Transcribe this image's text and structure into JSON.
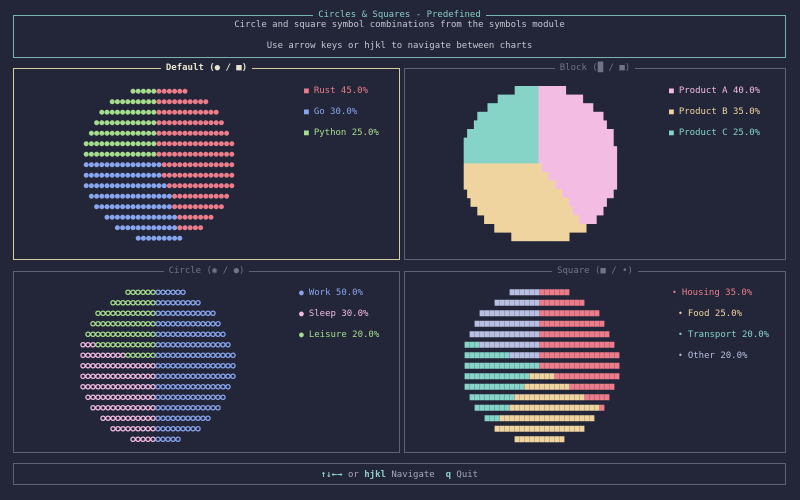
{
  "header": {
    "title": "Circles & Squares - Predefined",
    "subtitle": "Circle and square symbol combinations from the symbols module",
    "instructions": "Use arrow keys or hjkl to navigate between charts"
  },
  "footer": {
    "arrows": "↑↓←→",
    "or_text": "or",
    "hjkl": "hjkl",
    "navigate": "Navigate",
    "q_key": "q",
    "quit": "Quit"
  },
  "charts": [
    {
      "title": "Default (● / ■)",
      "chart_data": {
        "type": "pie",
        "labels": [
          "Rust",
          "Go",
          "Python"
        ],
        "values": [
          45.0,
          30.0,
          25.0
        ],
        "legend": [
          "Rust 45.0%",
          "Go 30.0%",
          "Python 25.0%"
        ],
        "colors": [
          "#ec7c8a",
          "#88a6ef",
          "#a6dd8c"
        ],
        "legend_position": "right"
      }
    },
    {
      "title": "Block (█ / ■)",
      "chart_data": {
        "type": "pie",
        "labels": [
          "Product A",
          "Product B",
          "Product C"
        ],
        "values": [
          40.0,
          35.0,
          25.0
        ],
        "legend": [
          "Product A 40.0%",
          "Product B 35.0%",
          "Product C 25.0%"
        ],
        "colors": [
          "#f3bce3",
          "#efd4a0",
          "#86d3c8"
        ],
        "legend_position": "right"
      }
    },
    {
      "title": "Circle (◉ / ●)",
      "chart_data": {
        "type": "pie",
        "labels": [
          "Work",
          "Sleep",
          "Leisure"
        ],
        "values": [
          50.0,
          30.0,
          20.0
        ],
        "legend": [
          "Work 50.0%",
          "Sleep 30.0%",
          "Leisure 20.0%"
        ],
        "colors": [
          "#88a6ef",
          "#f3bce3",
          "#a6dd8c"
        ],
        "legend_position": "right"
      }
    },
    {
      "title": "Square (■ / •)",
      "chart_data": {
        "type": "pie",
        "labels": [
          "Housing",
          "Food",
          "Transport",
          "Other"
        ],
        "values": [
          35.0,
          25.0,
          20.0,
          20.0
        ],
        "legend": [
          "Housing 35.0%",
          "Food 25.0%",
          "Transport 20.0%",
          "Other 20.0%"
        ],
        "colors": [
          "#ec7c8a",
          "#efd4a0",
          "#86d3c8",
          "#b8bfe0"
        ],
        "legend_position": "right"
      }
    }
  ]
}
